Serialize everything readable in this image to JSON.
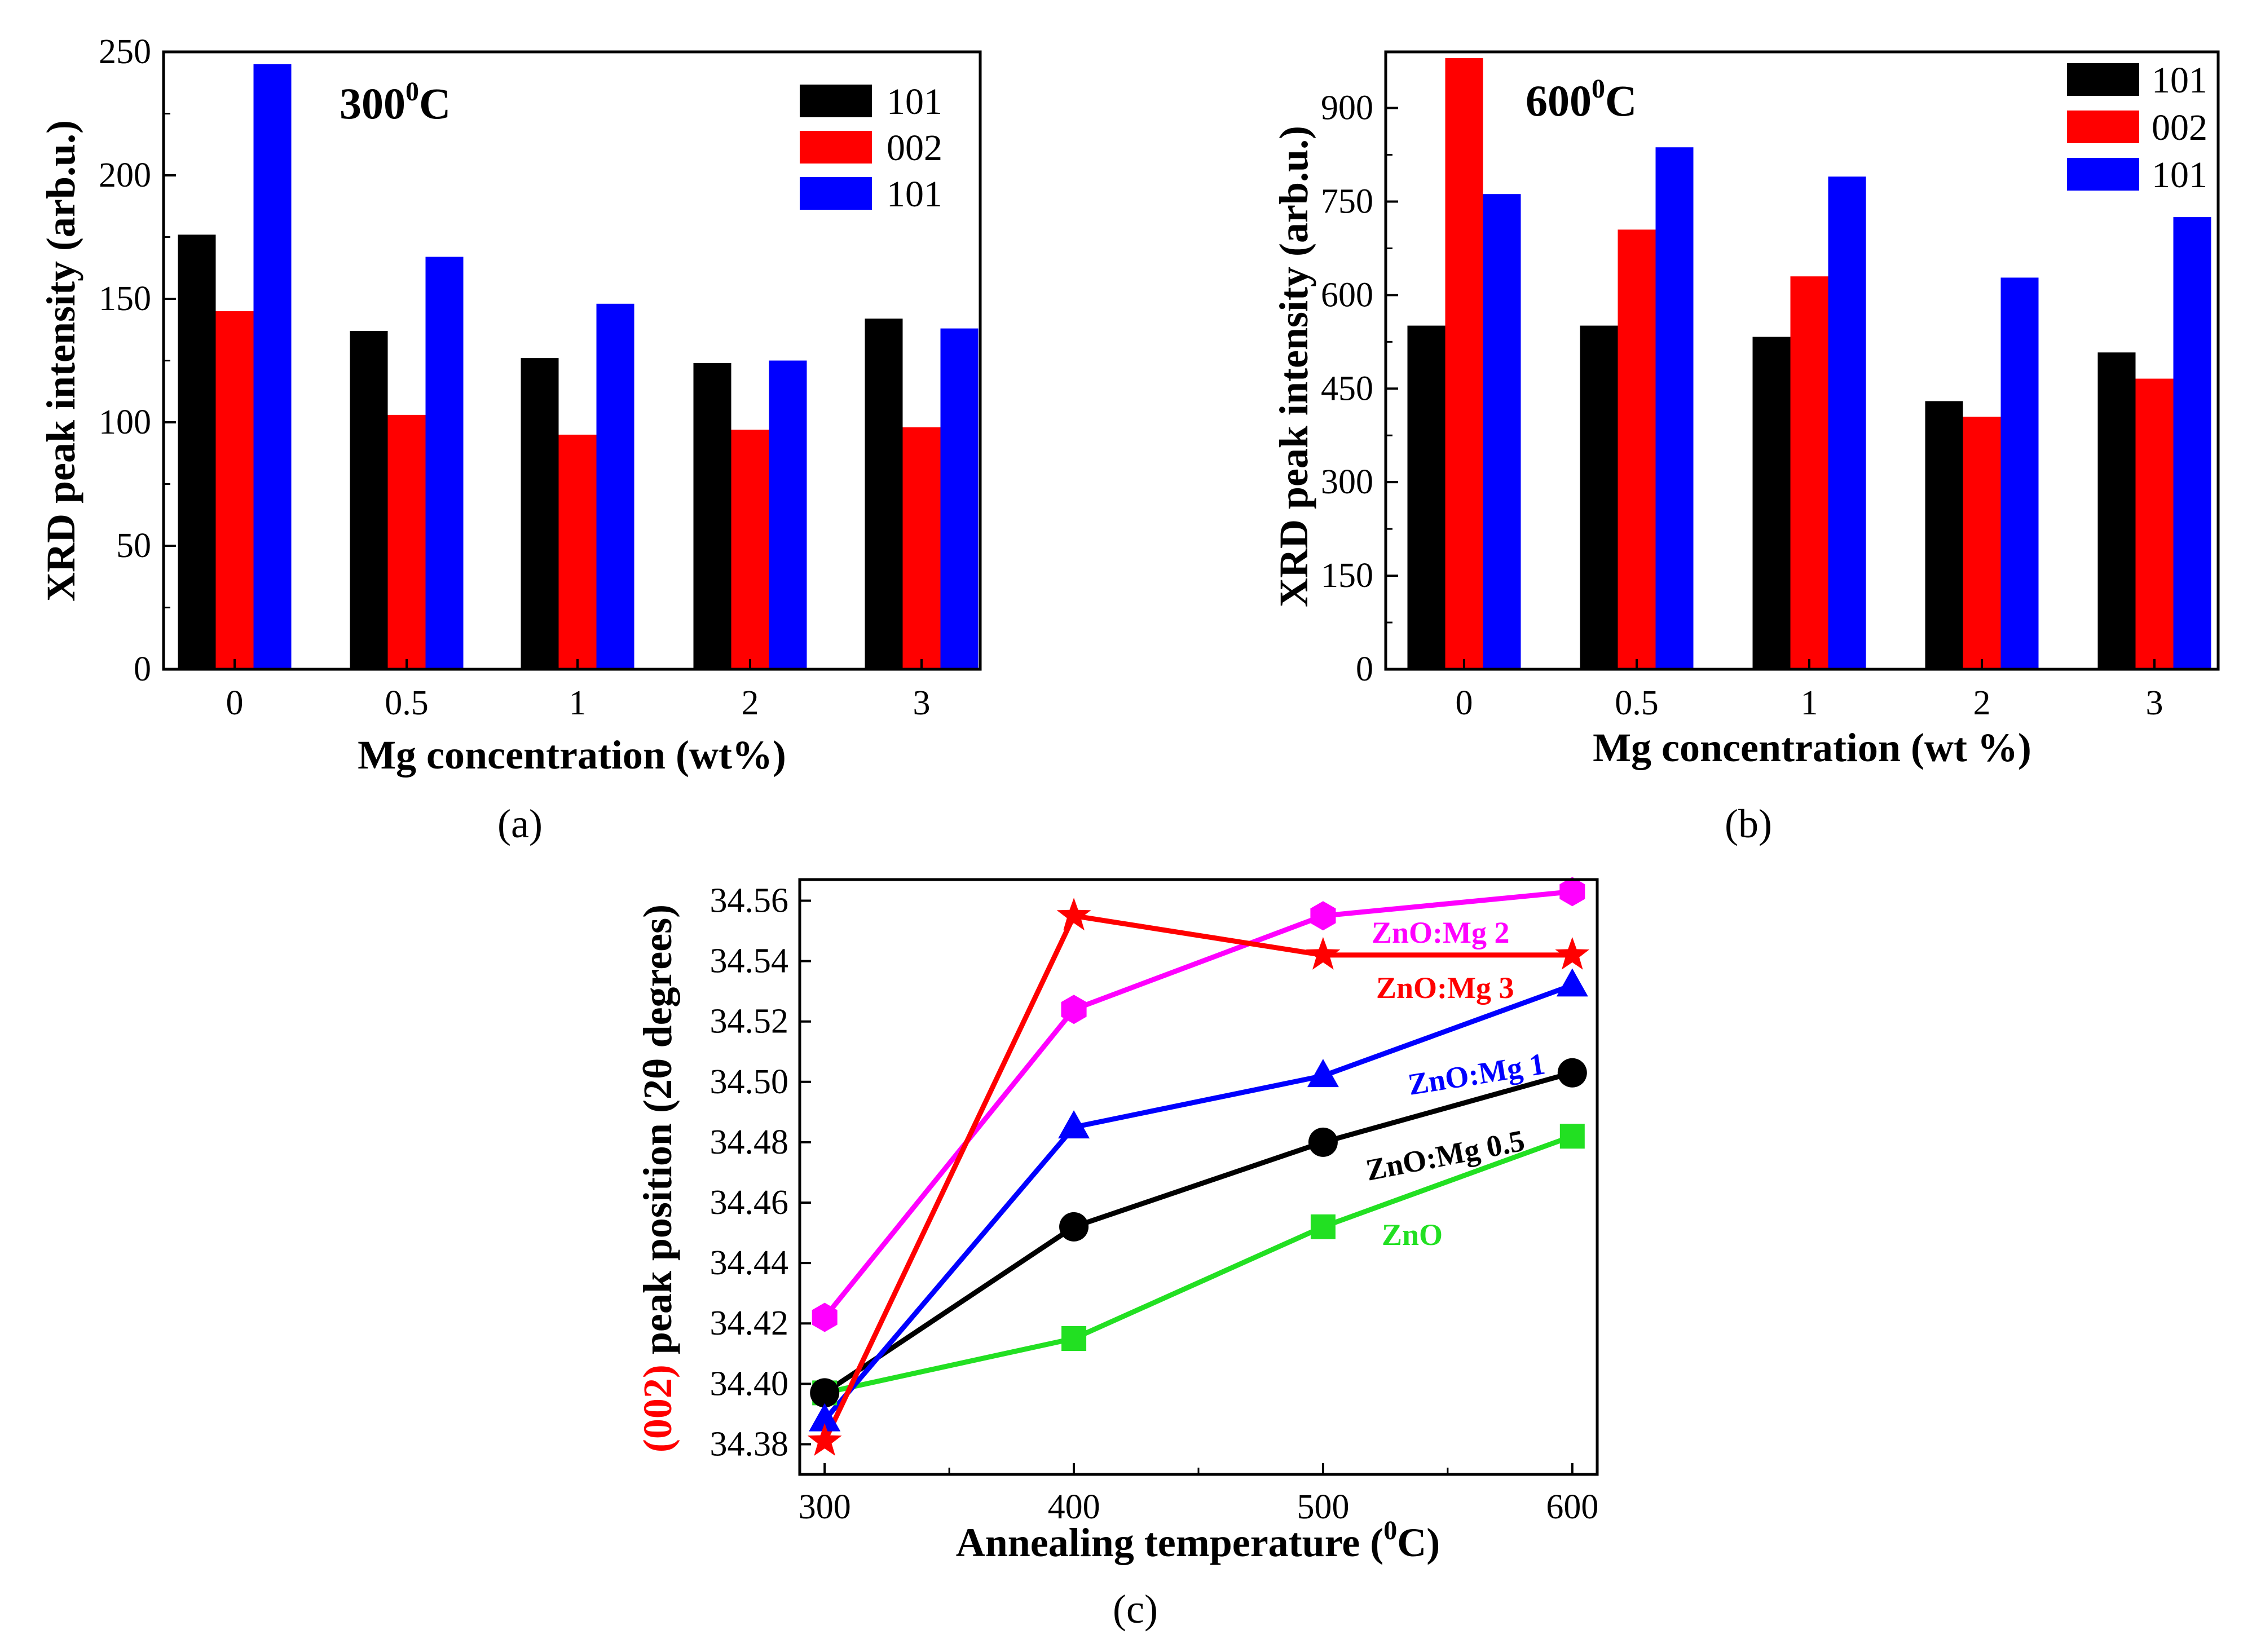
{
  "colors": {
    "black": "#000000",
    "red": "#ff0000",
    "blue": "#0000ff",
    "magenta": "#ff00ff",
    "green": "#22e022"
  },
  "chart_data": [
    {
      "type": "bar",
      "caption": "(a)",
      "annotation": {
        "main": "300",
        "sup": "0",
        "unit": "C",
        "color": "#1a1aff"
      },
      "xlabel": "Mg concentration (wt%)",
      "ylabel": "XRD peak intensity (arb.u.)",
      "ylim": [
        0,
        250
      ],
      "yticks": [
        "0",
        "50",
        "100",
        "150",
        "200",
        "250"
      ],
      "categories": [
        "0",
        "0.5",
        "1",
        "2",
        "3"
      ],
      "series": [
        {
          "name": "101",
          "color": "#000000",
          "values": [
            176,
            137,
            126,
            124,
            142
          ]
        },
        {
          "name": "002",
          "color": "#ff0000",
          "values": [
            145,
            103,
            95,
            97,
            98
          ]
        },
        {
          "name": "101",
          "color": "#0000ff",
          "values": [
            245,
            167,
            148,
            125,
            138
          ]
        }
      ]
    },
    {
      "type": "bar",
      "caption": "(b)",
      "annotation": {
        "main": "600",
        "sup": "0",
        "unit": "C",
        "color": "#ff0000"
      },
      "xlabel": "Mg concentration (wt %)",
      "ylabel": "XRD peak intensity (arb.u.)",
      "ylim": [
        0,
        990
      ],
      "yticks": [
        "0",
        "150",
        "300",
        "450",
        "600",
        "750",
        "900"
      ],
      "categories": [
        "0",
        "0.5",
        "1",
        "2",
        "3"
      ],
      "series": [
        {
          "name": "101",
          "color": "#000000",
          "values": [
            551,
            551,
            533,
            430,
            508
          ]
        },
        {
          "name": "002",
          "color": "#ff0000",
          "values": [
            980,
            705,
            630,
            405,
            466
          ]
        },
        {
          "name": "101",
          "color": "#0000ff",
          "values": [
            762,
            837,
            790,
            628,
            725
          ]
        }
      ]
    },
    {
      "type": "line",
      "caption": "(c)",
      "xlabel_main": "Annealing temperature (",
      "xlabel_sup": "0",
      "xlabel_end": "C)",
      "ylabel_red": "(002)",
      "ylabel_rest": " peak position (2θ degrees)",
      "xlim": [
        290,
        610
      ],
      "ylim": [
        34.37,
        34.567
      ],
      "xticks": [
        "300",
        "400",
        "500",
        "600"
      ],
      "yticks": [
        "34.38",
        "34.40",
        "34.42",
        "34.44",
        "34.46",
        "34.48",
        "34.50",
        "34.52",
        "34.54",
        "34.56"
      ],
      "x": [
        300,
        400,
        500,
        600
      ],
      "series": [
        {
          "name": "ZnO",
          "color": "#22e022",
          "marker": "square",
          "values": [
            34.397,
            34.415,
            34.452,
            34.482
          ]
        },
        {
          "name": "ZnO:Mg 0.5",
          "color": "#000000",
          "marker": "circle",
          "values": [
            34.397,
            34.452,
            34.48,
            34.503
          ]
        },
        {
          "name": "ZnO:Mg 1",
          "color": "#0000ff",
          "marker": "triangle",
          "values": [
            34.388,
            34.485,
            34.502,
            34.532
          ]
        },
        {
          "name": "ZnO:Mg 2",
          "color": "#ff00ff",
          "marker": "hexagon",
          "values": [
            34.422,
            34.524,
            34.555,
            34.563
          ]
        },
        {
          "name": "ZnO:Mg 3",
          "color": "#ff0000",
          "marker": "star",
          "values": [
            34.381,
            34.555,
            34.542,
            34.542
          ]
        }
      ]
    }
  ]
}
